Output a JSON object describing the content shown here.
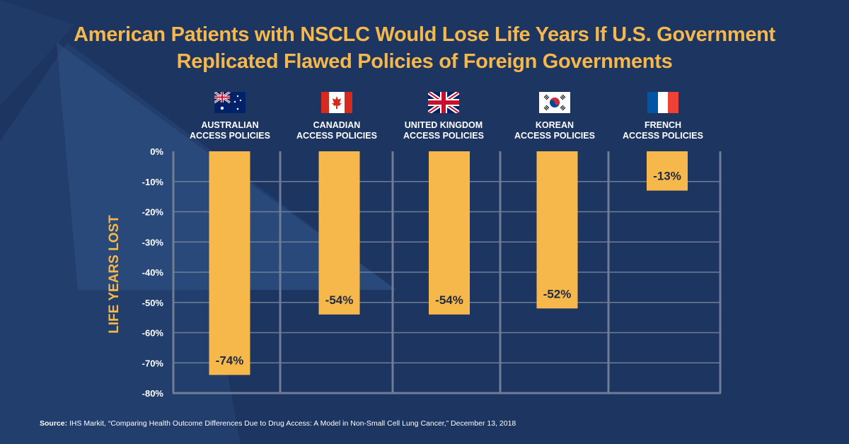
{
  "title": {
    "line1": "American Patients with NSCLC Would Lose Life Years If U.S. Government",
    "line2": "Replicated Flawed Policies of Foreign Governments"
  },
  "colors": {
    "background": "#1c3561",
    "bar": "#f7b84b",
    "grid": "#6f7d96",
    "title": "#f7b84b"
  },
  "categories": [
    {
      "line1": "AUSTRALIAN",
      "line2": "ACCESS POLICIES",
      "flag_icon": "australia-flag-icon"
    },
    {
      "line1": "CANADIAN",
      "line2": "ACCESS POLICIES",
      "flag_icon": "canada-flag-icon"
    },
    {
      "line1": "UNITED KINGDOM",
      "line2": "ACCESS POLICIES",
      "flag_icon": "uk-flag-icon"
    },
    {
      "line1": "KOREAN",
      "line2": "ACCESS POLICIES",
      "flag_icon": "korea-flag-icon"
    },
    {
      "line1": "FRENCH",
      "line2": "ACCESS POLICIES",
      "flag_icon": "france-flag-icon"
    }
  ],
  "chart_data": {
    "type": "bar",
    "categories": [
      "AUSTRALIAN ACCESS POLICIES",
      "CANADIAN ACCESS POLICIES",
      "UNITED KINGDOM ACCESS POLICIES",
      "KOREAN ACCESS POLICIES",
      "FRENCH ACCESS POLICIES"
    ],
    "values": [
      -74,
      -54,
      -54,
      -52,
      -13
    ],
    "data_labels": [
      "-74%",
      "-54%",
      "-54%",
      "-52%",
      "-13%"
    ],
    "ylabel": "LIFE YEARS LOST",
    "ylim": [
      -80,
      0
    ],
    "yticks": [
      0,
      -10,
      -20,
      -30,
      -40,
      -50,
      -60,
      -70,
      -80
    ],
    "ytick_labels": [
      "0%",
      "-10%",
      "-20%",
      "-30%",
      "-40%",
      "-50%",
      "-60%",
      "-70%",
      "-80%"
    ],
    "grid": true
  },
  "source": {
    "prefix": "Source:",
    "text": " IHS Markit, “Comparing Health Outcome Differences Due to Drug Access: A Model in Non-Small Cell Lung Cancer,” December 13, 2018"
  }
}
